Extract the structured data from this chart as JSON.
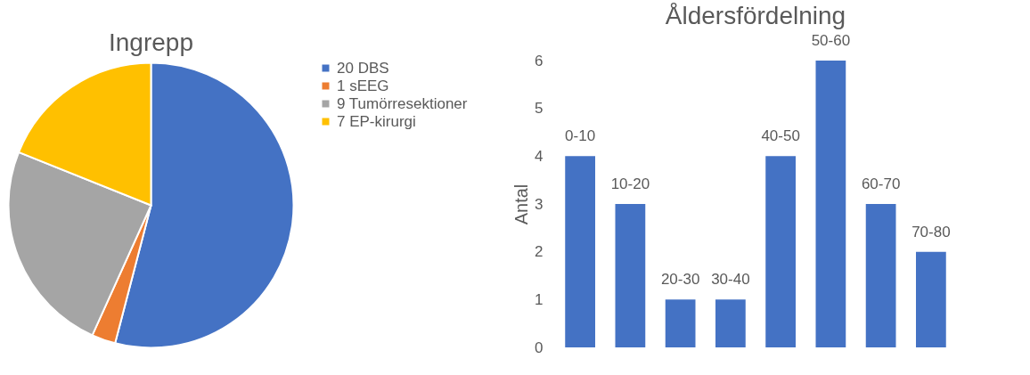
{
  "chart_data": [
    {
      "type": "pie",
      "title": "Ingrepp",
      "categories": [
        "20 DBS",
        "1 sEEG",
        "9 Tumörresektioner",
        "7 EP-kirurgi"
      ],
      "values": [
        20,
        1,
        9,
        7
      ],
      "colors": [
        "#4472c4",
        "#ed7d31",
        "#a5a5a5",
        "#ffc000"
      ],
      "legend": "right"
    },
    {
      "type": "bar",
      "title": "Åldersfördelning",
      "ylabel": "Antal",
      "categories": [
        "0-10",
        "10-20",
        "20-30",
        "30-40",
        "40-50",
        "50-60",
        "60-70",
        "70-80"
      ],
      "values": [
        4,
        3,
        1,
        1,
        4,
        6,
        3,
        2
      ],
      "color": "#4472c4",
      "ylim": [
        0,
        6
      ],
      "yticks": [
        0,
        1,
        2,
        3,
        4,
        5,
        6
      ],
      "grid": false
    }
  ]
}
